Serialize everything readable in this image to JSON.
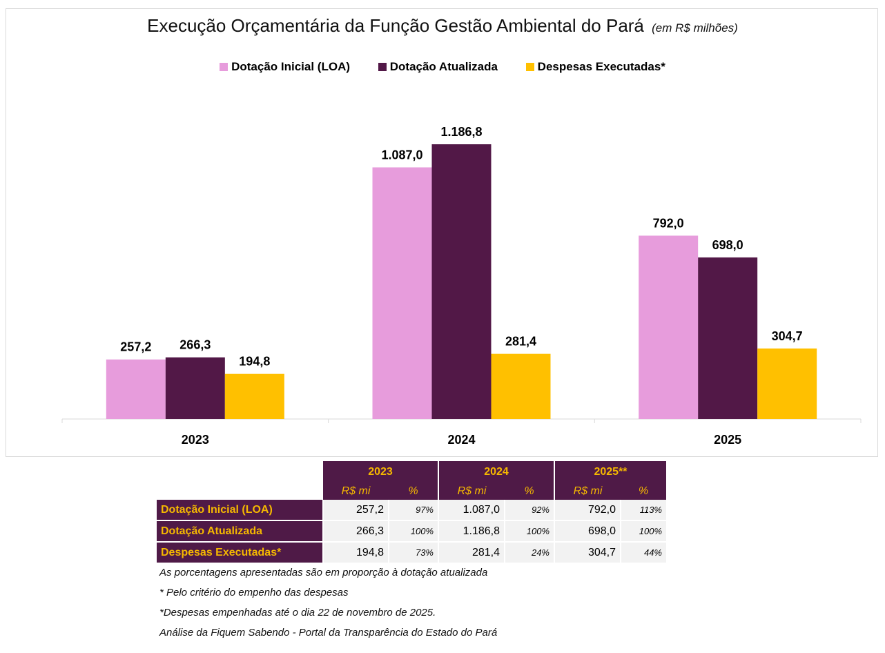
{
  "colors": {
    "loa": "#e79cdc",
    "atualizada": "#521847",
    "executadas": "#ffc000",
    "header_bg": "#4f1a47",
    "header_fg": "#f5b800"
  },
  "chart_data": {
    "type": "bar",
    "title": "Execução Orçamentária da Função Gestão Ambiental do Pará",
    "subtitle": "(em R$ milhões)",
    "categories": [
      "2023",
      "2024",
      "2025"
    ],
    "series": [
      {
        "name": "Dotação Inicial (LOA)",
        "values": [
          257.2,
          1087.0,
          792.0
        ],
        "labels": [
          "257,2",
          "1.087,0",
          "792,0"
        ]
      },
      {
        "name": "Dotação Atualizada",
        "values": [
          266.3,
          1186.8,
          698.0
        ],
        "labels": [
          "266,3",
          "1.186,8",
          "698,0"
        ]
      },
      {
        "name": "Despesas Executadas*",
        "values": [
          194.8,
          281.4,
          304.7
        ],
        "labels": [
          "194,8",
          "281,4",
          "304,7"
        ]
      }
    ],
    "ylim": [
      0,
      1186.8
    ],
    "legend": "top-center",
    "grid": false
  },
  "table": {
    "years": [
      "2023",
      "2024",
      "2025**"
    ],
    "sub_value": "R$ mi",
    "sub_pct": "%",
    "rows": [
      {
        "label": "Dotação Inicial (LOA)",
        "cells": [
          [
            "257,2",
            "97%"
          ],
          [
            "1.087,0",
            "92%"
          ],
          [
            "792,0",
            "113%"
          ]
        ]
      },
      {
        "label": "Dotação Atualizada",
        "cells": [
          [
            "266,3",
            "100%"
          ],
          [
            "1.186,8",
            "100%"
          ],
          [
            "698,0",
            "100%"
          ]
        ]
      },
      {
        "label": "Despesas Executadas*",
        "cells": [
          [
            "194,8",
            "73%"
          ],
          [
            "281,4",
            "24%"
          ],
          [
            "304,7",
            "44%"
          ]
        ]
      }
    ]
  },
  "notes": [
    "As porcentagens apresentadas são em proporção à dotação atualizada",
    " * Pelo critério do empenho das despesas",
    " *Despesas empenhadas até o dia 22 de novembro de 2025.",
    "Análise da Fiquem Sabendo - Portal da Transparência do Estado do Pará"
  ]
}
